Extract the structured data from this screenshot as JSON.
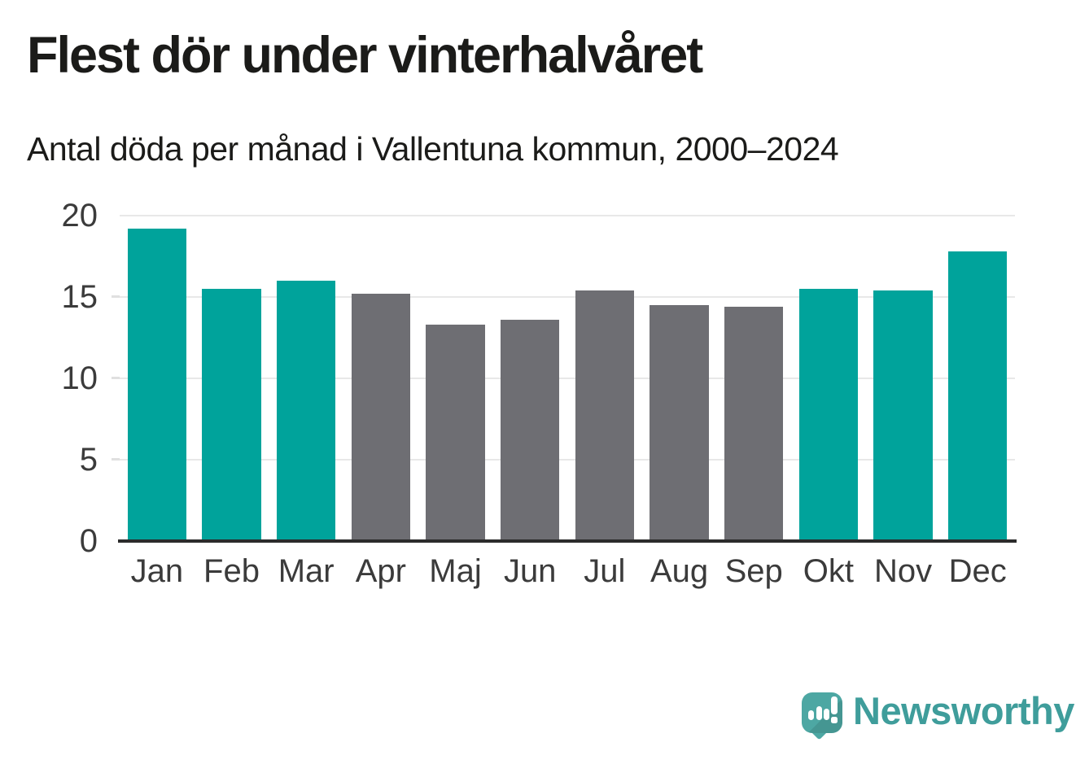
{
  "header": {
    "title": "Flest dör under vinterhalvåret",
    "subtitle": "Antal döda per månad i Vallentuna kommun, 2000–2024"
  },
  "chart_data": {
    "type": "bar",
    "title": "Flest dör under vinterhalvåret",
    "subtitle": "Antal döda per månad i Vallentuna kommun, 2000–2024",
    "categories": [
      "Jan",
      "Feb",
      "Mar",
      "Apr",
      "Maj",
      "Jun",
      "Jul",
      "Aug",
      "Sep",
      "Okt",
      "Nov",
      "Dec"
    ],
    "values": [
      19.2,
      15.5,
      16.0,
      15.2,
      13.3,
      13.6,
      15.4,
      14.5,
      14.4,
      15.5,
      15.4,
      17.8
    ],
    "highlighted": [
      true,
      true,
      true,
      false,
      false,
      false,
      false,
      false,
      false,
      true,
      true,
      true
    ],
    "xlabel": "",
    "ylabel": "",
    "ylim": [
      0,
      20
    ],
    "yticks": [
      0,
      5,
      10,
      15,
      20
    ],
    "grid": true,
    "legend": false
  },
  "footer": {
    "brand": "Newsworthy",
    "logo_icon": "speech-bubble-bar-chart-exclamation"
  },
  "colors": {
    "bar_highlight": "#00a39b",
    "bar_muted": "#6e6e73",
    "grid": "#e8e8e8",
    "axis_line": "#2b2b2b",
    "title_text": "#1b1b19",
    "axis_text": "#3b3b3b",
    "logo_bubble": "#4da7a3",
    "brand_text": "#3f9d9b"
  }
}
